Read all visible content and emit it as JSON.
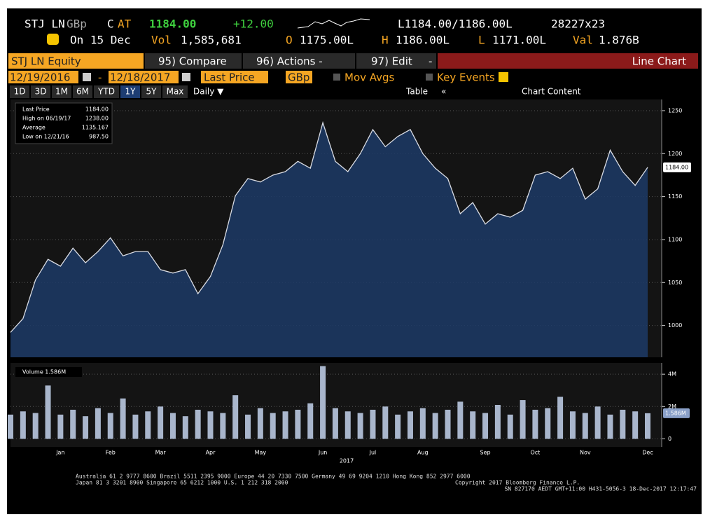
{
  "header": {
    "ticker": "STJ LN",
    "currency": "GBp",
    "c": "C",
    "at": "AT",
    "price": "1184.00",
    "change": "+12.00",
    "bid_ask": "L1184.00/1186.00L",
    "size": "28227x23",
    "date": "On 15 Dec",
    "vol_label": "Vol",
    "vol": "1,585,681",
    "open_label": "O",
    "open": "1175.00L",
    "high_label": "H",
    "high": "1186.00L",
    "low_label": "L",
    "low": "1171.00L",
    "val_label": "Val",
    "val": "1.876B"
  },
  "menu": {
    "security": "STJ LN Equity",
    "compare": "95) Compare",
    "actions": "96) Actions -",
    "edit": "97) Edit",
    "dash": "-",
    "view": "Line Chart"
  },
  "controls": {
    "start": "12/19/2016",
    "sep": "-",
    "end": "12/18/2017",
    "field": "Last Price",
    "ccy": "GBp",
    "mov_avgs": "Mov Avgs",
    "key_events": "Key Events"
  },
  "toolbar": {
    "periods": [
      "1D",
      "3D",
      "1M",
      "6M",
      "YTD",
      "1Y",
      "5Y",
      "Max"
    ],
    "freq": "Daily ▼",
    "table": "Table",
    "back": "«",
    "content": "Chart Content"
  },
  "chart_data": [
    {
      "type": "line",
      "color": "#d9dce4",
      "fill": "#1c3a66",
      "categories": [
        null,
        null,
        null,
        null,
        "Jan",
        null,
        null,
        null,
        "Feb",
        null,
        null,
        null,
        "Mar",
        null,
        null,
        null,
        "Apr",
        null,
        null,
        null,
        "May",
        null,
        null,
        null,
        null,
        "Jun",
        null,
        null,
        null,
        "Jul",
        null,
        null,
        null,
        "Aug",
        null,
        null,
        null,
        null,
        "Sep",
        null,
        null,
        null,
        "Oct",
        null,
        null,
        null,
        "Nov",
        null,
        null,
        null,
        null,
        "Dec"
      ],
      "values": [
        992,
        1008,
        1053,
        1077,
        1069,
        1090,
        1073,
        1086,
        1102,
        1081,
        1086,
        1086,
        1065,
        1061,
        1065,
        1037,
        1057,
        1094,
        1151,
        1171,
        1167,
        1175,
        1179,
        1191,
        1183,
        1236,
        1191,
        1179,
        1200,
        1228,
        1208,
        1220,
        1228,
        1200,
        1183,
        1171,
        1130,
        1143,
        1118,
        1130,
        1126,
        1134,
        1175,
        1179,
        1171,
        1183,
        1147,
        1159,
        1204,
        1179,
        1163,
        1184
      ],
      "last_label": "1184.00",
      "ylim": [
        963,
        1263
      ],
      "yticks": [
        1000,
        1050,
        1100,
        1150,
        1200,
        1250
      ],
      "grid": true,
      "legend": [
        {
          "label": "Last Price",
          "value": "1184.00"
        },
        {
          "label": "High on 06/19/17",
          "value": "1238.00"
        },
        {
          "label": "Average",
          "value": "1135.167"
        },
        {
          "label": "Low on 12/21/16",
          "value": "987.50"
        }
      ]
    },
    {
      "type": "bar",
      "color": "#a9b6cc",
      "legend": "Volume 1.586M",
      "xlabel": "2017",
      "values": [
        1500000,
        1700000,
        1600000,
        3300000,
        1500000,
        1800000,
        1400000,
        1900000,
        1600000,
        2500000,
        1500000,
        1700000,
        2000000,
        1600000,
        1400000,
        1800000,
        1700000,
        1600000,
        2700000,
        1500000,
        1900000,
        1600000,
        1700000,
        1800000,
        2200000,
        4500000,
        1900000,
        1700000,
        1600000,
        1800000,
        2000000,
        1500000,
        1700000,
        1900000,
        1600000,
        1800000,
        2300000,
        1700000,
        1600000,
        2100000,
        1500000,
        2400000,
        1800000,
        1900000,
        2600000,
        1700000,
        1600000,
        2000000,
        1500000,
        1800000,
        1700000,
        1586000
      ],
      "last_label": "1.586M",
      "ylim": [
        -500000,
        4700000
      ],
      "yticks": [
        0,
        {
          "value": 2000000,
          "label": "2M"
        },
        {
          "value": 4000000,
          "label": "4M"
        }
      ],
      "grid": true
    }
  ],
  "footer": {
    "line1": "Australia 61 2 9777 8600 Brazil 5511 2395 9000 Europe 44 20 7330 7500 Germany 49 69 9204 1210 Hong Kong 852 2977 6000",
    "line2": "Japan 81 3 3201 8900        Singapore 65 6212 1000        U.S. 1 212 318 2000",
    "copyright": "Copyright 2017 Bloomberg Finance L.P.",
    "line3": "SN 827170 AEDT GMT+11:00 H431-5056-3 18-Dec-2017 12:17:47"
  }
}
